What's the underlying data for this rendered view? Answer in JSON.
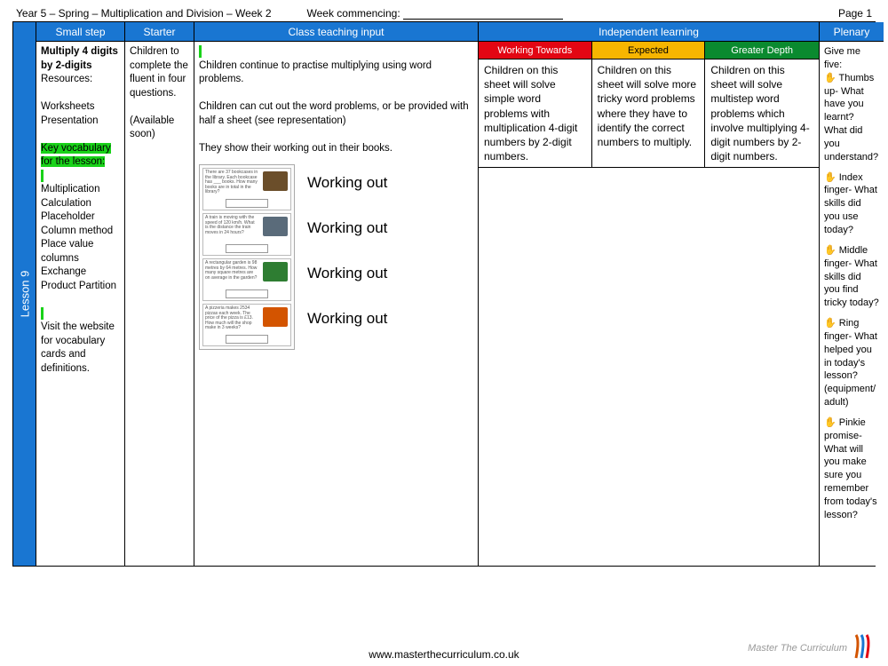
{
  "top": {
    "title": "Year 5 – Spring – Multiplication and Division – Week 2",
    "wc_label": "Week commencing:",
    "page": "Page 1"
  },
  "lesson_label": "Lesson 9",
  "headers": {
    "smallstep": "Small step",
    "starter": "Starter",
    "teaching": "Class teaching input",
    "independent": "Independent learning",
    "plenary": "Plenary"
  },
  "smallstep": {
    "title": "Multiply 4 digits by 2-digits",
    "resources_label": "Resources:",
    "resources": "Worksheets Presentation",
    "keyvocab_label": "Key vocabulary for the lesson:",
    "vocab": "Multiplication Calculation Placeholder Column method Place value columns Exchange Product Partition",
    "note": "Visit the website for vocabulary cards and definitions."
  },
  "starter": {
    "line1": "Children to complete the fluent in four questions.",
    "line2": "(Available soon)"
  },
  "teaching": {
    "p1": "Children continue to practise multiplying using word problems.",
    "p2": "Children can cut out the word problems, or be provided with half a sheet (see representation)",
    "p3": "They show their working out in their books.",
    "workout": "Working out",
    "cards": [
      {
        "text": "There are 37 bookcases in the library. Each bookcase has ___ books. How many books are in total in the library?",
        "pic": "#6b4e2a"
      },
      {
        "text": "A train is moving with the speed of 120 km/h. What is the distance the train moves in 24 hours?",
        "pic": "#5a6b7a"
      },
      {
        "text": "A rectangular garden is 98 metres by 64 metres. How many square metres are on average in the garden?",
        "pic": "#2e7d32"
      },
      {
        "text": "A pizzeria makes 2534 pizzas each week. The price of the pizza is £13. How much will the shop make in 3 weeks?",
        "pic": "#d35400"
      }
    ]
  },
  "independent": {
    "sub": {
      "wt": "Working Towards",
      "ex": "Expected",
      "gd": "Greater Depth"
    },
    "wt": "Children on this sheet will solve simple word problems with multiplication 4-digit numbers by 2-digit numbers.",
    "ex": "Children on this sheet will solve more tricky word problems where they have to identify the correct numbers to multiply.",
    "gd": "Children on this sheet will solve multistep word problems which involve multiplying 4-digit numbers by 2-digit numbers."
  },
  "plenary": {
    "intro": "Give me five:",
    "items": [
      "✋ Thumbs up- What have you learnt? What did you understand?",
      "✋ Index finger- What skills did you use today?",
      "✋ Middle finger- What skills did you find tricky today?",
      "✋ Ring finger- What helped you in today's lesson? (equipment/ adult)",
      "✋ Pinkie promise- What will you make sure you remember from today's lesson?"
    ]
  },
  "footer": {
    "url": "www.masterthecurriculum.co.uk",
    "brand": "Master The Curriculum"
  },
  "colors": {
    "header_blue": "#1976d2",
    "wt_red": "#e30613",
    "ex_yellow": "#f7b500",
    "gd_green": "#0a8a2f",
    "highlight_green": "#19d219"
  }
}
